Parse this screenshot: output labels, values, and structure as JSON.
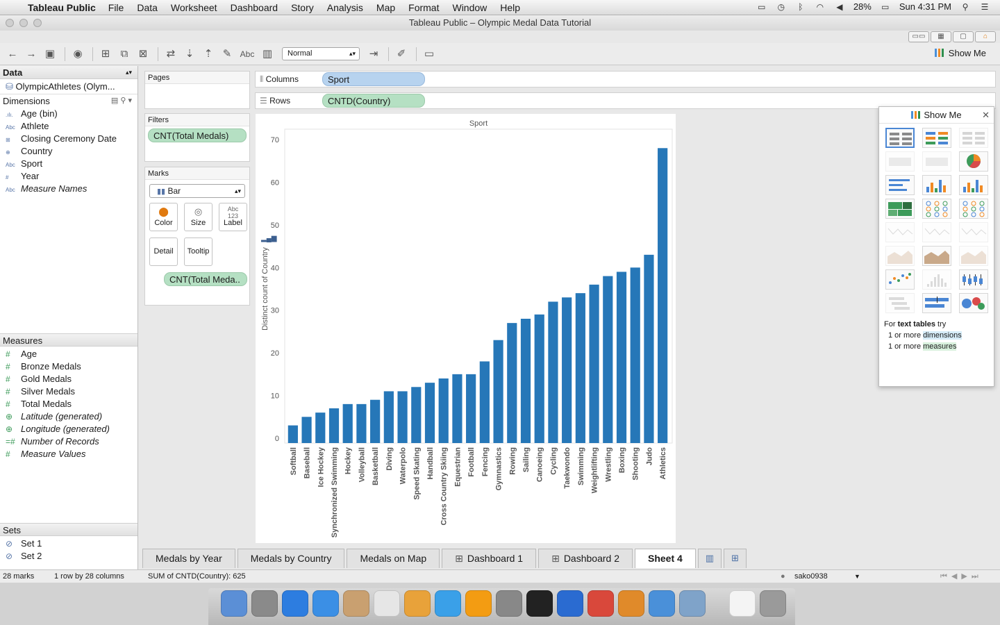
{
  "menubar": {
    "app": "Tableau Public",
    "items": [
      "File",
      "Data",
      "Worksheet",
      "Dashboard",
      "Story",
      "Analysis",
      "Map",
      "Format",
      "Window",
      "Help"
    ],
    "battery": "28%",
    "clock": "Sun 4:31 PM"
  },
  "window": {
    "title": "Tableau Public – Olympic Medal Data Tutorial"
  },
  "toolbar": {
    "fit_mode": "Normal",
    "show_me_label": "Show Me",
    "text_button": "Abc"
  },
  "datapane": {
    "header": "Data",
    "datasource": "OlympicAthletes (Olym...",
    "dimensions_header": "Dimensions",
    "dimensions": [
      {
        "type": ".ılı.",
        "name": "Age (bin)",
        "italic": false
      },
      {
        "type": "Abc",
        "name": "Athlete",
        "italic": false
      },
      {
        "type": "⊞",
        "name": "Closing Ceremony Date",
        "italic": false
      },
      {
        "type": "⊕",
        "name": "Country",
        "italic": false
      },
      {
        "type": "Abc",
        "name": "Sport",
        "italic": false
      },
      {
        "type": "#",
        "name": "Year",
        "italic": false
      },
      {
        "type": "Abc",
        "name": "Measure Names",
        "italic": true
      }
    ],
    "measures_header": "Measures",
    "measures": [
      {
        "type": "#",
        "name": "Age",
        "italic": false
      },
      {
        "type": "#",
        "name": "Bronze Medals",
        "italic": false
      },
      {
        "type": "#",
        "name": "Gold Medals",
        "italic": false
      },
      {
        "type": "#",
        "name": "Silver Medals",
        "italic": false
      },
      {
        "type": "#",
        "name": "Total Medals",
        "italic": false
      },
      {
        "type": "⊕",
        "name": "Latitude (generated)",
        "italic": true
      },
      {
        "type": "⊕",
        "name": "Longitude (generated)",
        "italic": true
      },
      {
        "type": "=#",
        "name": "Number of Records",
        "italic": true
      },
      {
        "type": "#",
        "name": "Measure Values",
        "italic": true
      }
    ],
    "sets_header": "Sets",
    "sets": [
      "Set 1",
      "Set 2"
    ]
  },
  "shelves": {
    "pages_label": "Pages",
    "filters_label": "Filters",
    "filter_pill": "CNT(Total Medals)",
    "marks_label": "Marks",
    "mark_type": "Bar",
    "mark_buttons": {
      "color": "Color",
      "size": "Size",
      "label": "Label",
      "detail": "Detail",
      "tooltip": "Tooltip"
    },
    "marks_pill": "CNT(Total Meda..",
    "columns_label": "Columns",
    "columns_pill": "Sport",
    "rows_label": "Rows",
    "rows_pill": "CNTD(Country)"
  },
  "chart_data": {
    "type": "bar",
    "title": "Sport",
    "ylabel": "Distinct count of Country",
    "ylim": [
      0,
      70
    ],
    "yticks": [
      0,
      10,
      20,
      30,
      40,
      50,
      60,
      70
    ],
    "bar_color": "#2677b8",
    "categories": [
      "Softball",
      "Baseball",
      "Ice Hockey",
      "Synchronized Swimming",
      "Hockey",
      "Volleyball",
      "Basketball",
      "Diving",
      "Waterpolo",
      "Speed Skating",
      "Handball",
      "Cross Country Skiing",
      "Equestrian",
      "Football",
      "Fencing",
      "Gymnastics",
      "Rowing",
      "Sailing",
      "Canoeing",
      "Cycling",
      "Taekwondo",
      "Swimming",
      "Weightlifting",
      "Wrestling",
      "Boxing",
      "Shooting",
      "Judo",
      "Athletics"
    ],
    "values": [
      3,
      5,
      6,
      7,
      8,
      8,
      9,
      11,
      11,
      12,
      13,
      14,
      15,
      15,
      18,
      23,
      27,
      28,
      29,
      32,
      33,
      34,
      36,
      38,
      39,
      40,
      43,
      68
    ]
  },
  "showme": {
    "title": "Show Me",
    "hint_prefix": "For ",
    "hint_bold": "text tables",
    "hint_suffix": " try",
    "hint_line1_pre": "1 or more ",
    "hint_line1_hl": "dimensions",
    "hint_line2_pre": "1 or more ",
    "hint_line2_hl": "measures"
  },
  "tabs": [
    "Medals by Year",
    "Medals by Country",
    "Medals on Map",
    "Dashboard 1",
    "Dashboard 2",
    "Sheet 4"
  ],
  "status": {
    "marks": "28 marks",
    "dims": "1 row by 28 columns",
    "sum": "SUM of CNTD(Country): 625",
    "user": "sako0938"
  }
}
